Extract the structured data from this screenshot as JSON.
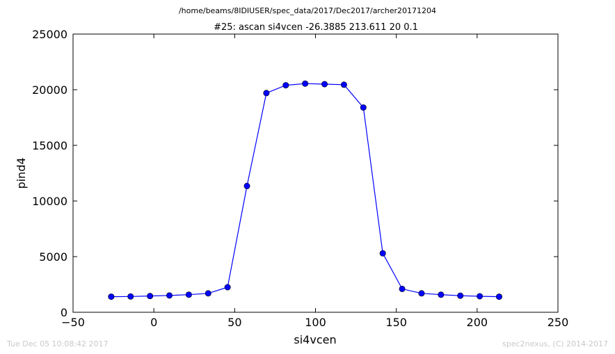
{
  "suptitle": "/home/beams/8IDIUSER/spec_data/2017/Dec2017/archer20171204",
  "footer_left": "Tue Dec 05 10:08:42 2017",
  "footer_right": "spec2nexus, (C) 2014-2017",
  "colors": {
    "series": "#0000ff",
    "axes": "#000000",
    "footer": "#c8c8c8"
  },
  "chart_data": {
    "type": "line",
    "title": "#25: ascan  si4vcen -26.3885 213.611  20 0.1",
    "xlabel": "si4vcen",
    "ylabel": "pind4",
    "xlim": [
      -50,
      250
    ],
    "ylim": [
      0,
      25000
    ],
    "xticks": [
      -50,
      0,
      50,
      100,
      150,
      200,
      250
    ],
    "yticks": [
      0,
      5000,
      10000,
      15000,
      20000,
      25000
    ],
    "grid": false,
    "marker": "circle",
    "x": [
      -26.3885,
      -14.39,
      -2.39,
      9.61,
      21.61,
      33.61,
      45.61,
      57.61,
      69.61,
      81.61,
      93.61,
      105.61,
      117.61,
      129.61,
      141.61,
      153.61,
      165.61,
      177.61,
      189.61,
      201.61,
      213.611
    ],
    "y": [
      1400,
      1420,
      1460,
      1510,
      1580,
      1700,
      2250,
      11350,
      19700,
      20400,
      20550,
      20500,
      20450,
      18400,
      5300,
      2100,
      1700,
      1580,
      1490,
      1440,
      1400
    ]
  }
}
